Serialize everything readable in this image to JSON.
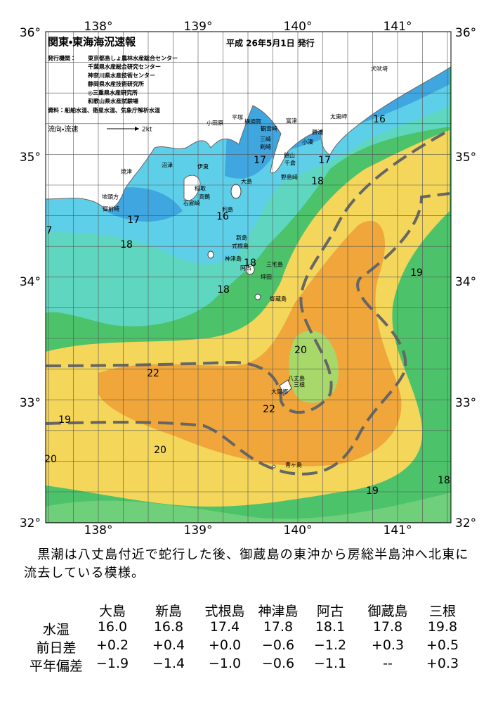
{
  "map": {
    "title": "関東・東海海況速報",
    "date": "平成 26年5月1日 発行",
    "issuers_label": "発行機関：",
    "issuers": [
      "東京都島しょ農林水産総合センター",
      "千葉県水産総合研究センター",
      "神奈川県水産技術センター",
      "静岡県水産技術研究所",
      "◎三重県水産研究所",
      "和歌山県水産試験場"
    ],
    "sources": "資料：船舶水温、衛星水温、気象庁解析水温",
    "flow_label": "流向・流速",
    "flow_scale": "2kt",
    "lon_labels": [
      "138°",
      "139°",
      "140°",
      "141°"
    ],
    "lat_labels": [
      "36°",
      "35°",
      "34°",
      "33°",
      "32°"
    ],
    "place_labels": [
      "犬吠埼",
      "太東岬",
      "勝浦",
      "小湊",
      "富津",
      "館山",
      "千倉",
      "野島崎",
      "観音崎",
      "剣崎",
      "横須賀",
      "平塚",
      "小田原",
      "三崎",
      "真鶴",
      "伊東",
      "沼津",
      "焼津",
      "稲取",
      "石廊崎",
      "御前崎",
      "地頭方",
      "大島",
      "利島",
      "新島",
      "式根島",
      "神津島",
      "三宅島",
      "阿古",
      "坪田",
      "御蔵島",
      "八丈島",
      "三根",
      "大賀郷",
      "青ヶ島"
    ],
    "temperature_labels": [
      "16",
      "17",
      "17",
      "18",
      "17",
      "18",
      "7",
      "16",
      "18",
      "18",
      "19",
      "20",
      "22",
      "22",
      "19",
      "20",
      "20",
      "19",
      "18"
    ]
  },
  "description": "　黒潮は八丈島付近で蛇行した後、御蔵島の東沖から房総半島沖へ北東に流去している模様。",
  "table": {
    "header": [
      "大島",
      "新島",
      "式根島",
      "神津島",
      "阿古",
      "御蔵島",
      "三根"
    ],
    "rows": [
      [
        "水温",
        "16.0",
        "16.8",
        "17.4",
        "17.8",
        "18.1",
        "17.8",
        "19.8"
      ],
      [
        "前日差",
        "+0.2",
        "+0.4",
        "+0.0",
        "−0.6",
        "−1.2",
        "+0.3",
        "+0.5"
      ],
      [
        "平年偏差",
        "−1.9",
        "−1.4",
        "−1.0",
        "−0.6",
        "−1.1",
        "--",
        "+0.3"
      ]
    ]
  }
}
